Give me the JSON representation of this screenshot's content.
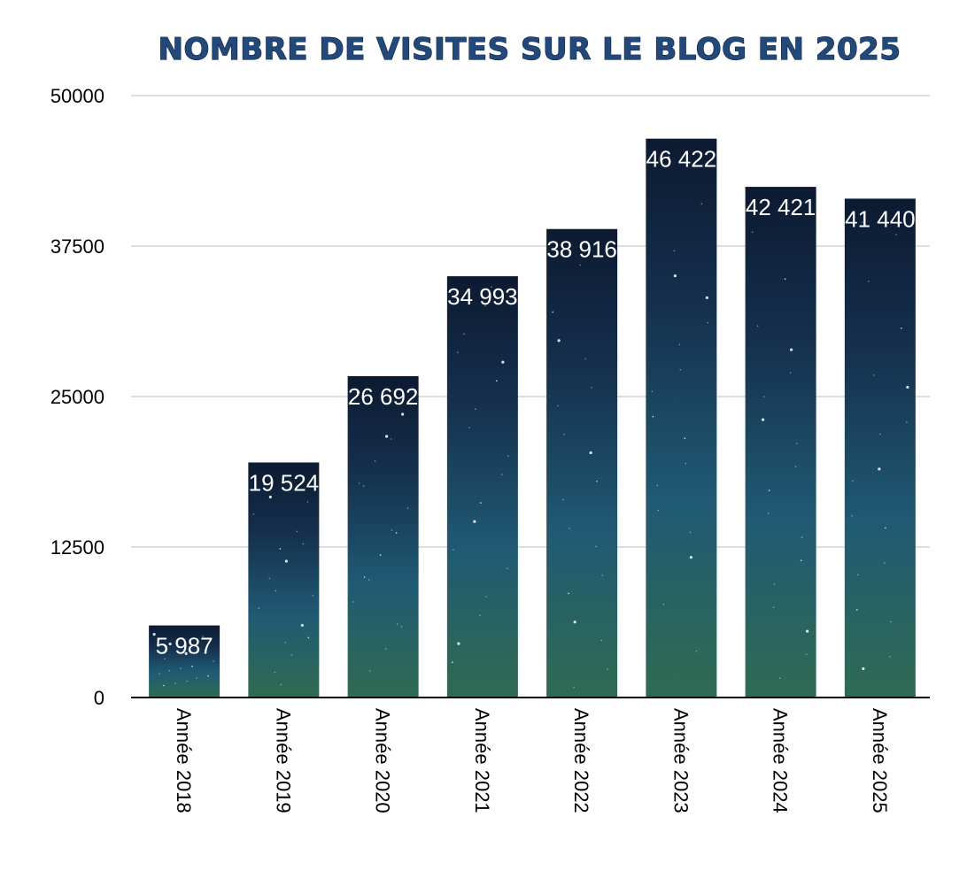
{
  "chart_data": {
    "type": "bar",
    "title": "NOMBRE DE VISITES SUR LE BLOG EN 2025",
    "xlabel": "",
    "ylabel": "",
    "categories": [
      "Année 2018",
      "Année 2019",
      "Année 2020",
      "Année 2021",
      "Année 2022",
      "Année 2023",
      "Année 2024",
      "Année 2025"
    ],
    "values": [
      5987,
      19524,
      26692,
      34993,
      38916,
      46422,
      42421,
      41440
    ],
    "value_labels": [
      "5 987",
      "19 524",
      "26 692",
      "34 993",
      "38 916",
      "46 422",
      "42 421",
      "41 440"
    ],
    "yticks": [
      0,
      12500,
      25000,
      37500,
      50000
    ],
    "ylim": [
      0,
      50000
    ],
    "grid": true,
    "legend": "none",
    "colors": {
      "bar_top": "#0d1b33",
      "bar_mid": "#1f5470",
      "bar_bottom": "#2f6b55",
      "title": "#23487a",
      "data_label": "#ffffff"
    }
  }
}
